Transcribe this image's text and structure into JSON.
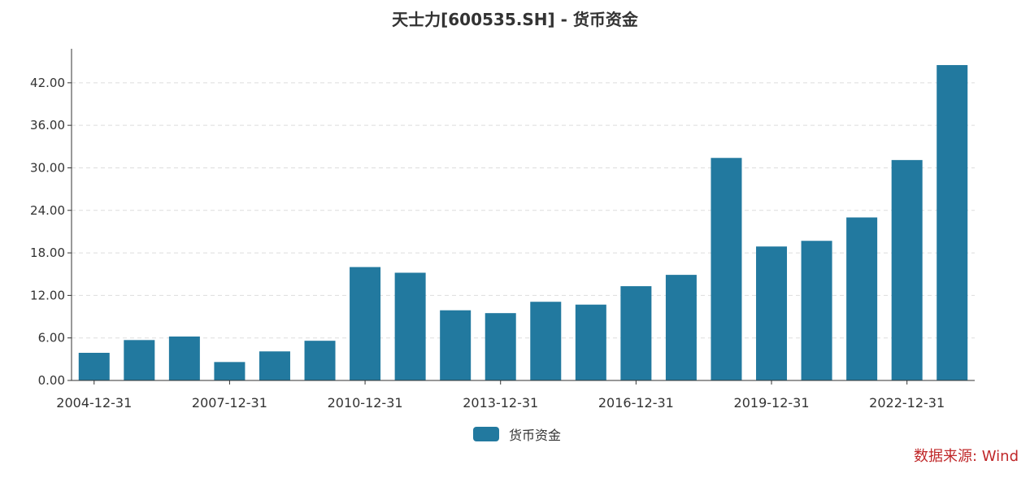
{
  "title": "天士力[600535.SH] - 货币资金",
  "source_text": "数据来源: Wind",
  "colors": {
    "bar": "#22799f",
    "source": "#c0282a",
    "grid": "#dddddd",
    "axis": "#333333"
  },
  "chart_data": {
    "type": "bar",
    "title": "天士力[600535.SH] - 货币资金",
    "categories": [
      "2004-12-31",
      "2005-12-31",
      "2006-12-31",
      "2007-12-31",
      "2008-12-31",
      "2009-12-31",
      "2010-12-31",
      "2011-12-31",
      "2012-12-31",
      "2013-12-31",
      "2014-12-31",
      "2015-12-31",
      "2016-12-31",
      "2017-12-31",
      "2018-12-31",
      "2019-12-31",
      "2020-12-31",
      "2021-12-31",
      "2022-12-31",
      "2023-12-31"
    ],
    "x_tick_labels": [
      "2004-12-31",
      "2007-12-31",
      "2010-12-31",
      "2013-12-31",
      "2016-12-31",
      "2019-12-31",
      "2022-12-31"
    ],
    "series": [
      {
        "name": "货币资金",
        "values": [
          3.9,
          5.7,
          6.2,
          2.6,
          4.1,
          5.6,
          16.0,
          15.2,
          9.9,
          9.5,
          11.1,
          10.7,
          13.3,
          14.9,
          31.4,
          18.9,
          19.7,
          23.0,
          31.1,
          44.5
        ]
      }
    ],
    "y_ticks": [
      "0.00",
      "6.00",
      "12.00",
      "18.00",
      "24.00",
      "30.00",
      "36.00",
      "42.00"
    ],
    "ylim": [
      0,
      46.8
    ],
    "grid": true,
    "legend_position": "bottom-center"
  }
}
